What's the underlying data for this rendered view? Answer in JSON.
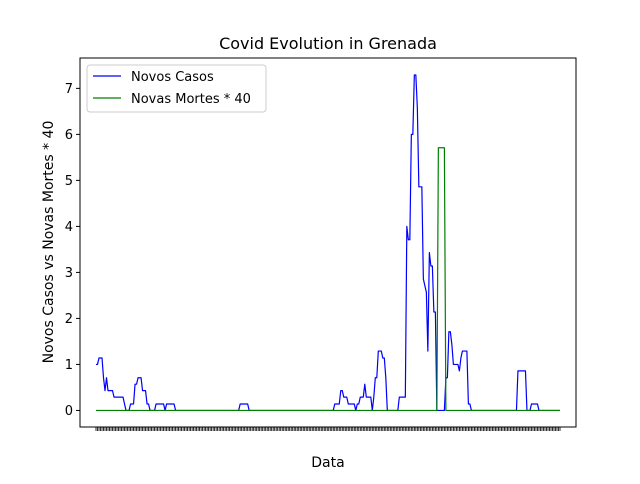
{
  "chart_data": {
    "type": "line",
    "title": "Covid Evolution in Grenada",
    "xlabel": "Data",
    "ylabel": "Novos Casos vs Novas Mortes * 40",
    "ylim": [
      -0.36,
      7.66
    ],
    "y_ticks": [
      0,
      1,
      2,
      3,
      4,
      5,
      6,
      7
    ],
    "grid": false,
    "legend_position": "upper-left",
    "x_tick_labels_note": "x tick labels are overlapping, illegible date strings",
    "x_range": [
      0,
      309
    ],
    "colors": {
      "novos_casos": "#0000ff",
      "novas_mortes": "#008000"
    },
    "series": [
      {
        "name": "Novos Casos",
        "color": "#0000ff",
        "points": [
          [
            0,
            1.0
          ],
          [
            1,
            1.0
          ],
          [
            2,
            1.14
          ],
          [
            3,
            1.14
          ],
          [
            4,
            1.14
          ],
          [
            5,
            0.71
          ],
          [
            6,
            0.43
          ],
          [
            7,
            0.71
          ],
          [
            8,
            0.43
          ],
          [
            9,
            0.43
          ],
          [
            10,
            0.43
          ],
          [
            11,
            0.43
          ],
          [
            12,
            0.29
          ],
          [
            13,
            0.29
          ],
          [
            14,
            0.29
          ],
          [
            15,
            0.29
          ],
          [
            16,
            0.29
          ],
          [
            17,
            0.29
          ],
          [
            18,
            0.29
          ],
          [
            19,
            0.14
          ],
          [
            20,
            0.0
          ],
          [
            21,
            0.0
          ],
          [
            22,
            0.0
          ],
          [
            23,
            0.14
          ],
          [
            24,
            0.14
          ],
          [
            25,
            0.14
          ],
          [
            26,
            0.57
          ],
          [
            27,
            0.57
          ],
          [
            28,
            0.71
          ],
          [
            29,
            0.71
          ],
          [
            30,
            0.71
          ],
          [
            31,
            0.43
          ],
          [
            32,
            0.43
          ],
          [
            33,
            0.43
          ],
          [
            34,
            0.14
          ],
          [
            35,
            0.14
          ],
          [
            36,
            0.0
          ],
          [
            37,
            0.0
          ],
          [
            38,
            0.0
          ],
          [
            39,
            0.0
          ],
          [
            40,
            0.14
          ],
          [
            41,
            0.14
          ],
          [
            42,
            0.14
          ],
          [
            43,
            0.14
          ],
          [
            44,
            0.14
          ],
          [
            45,
            0.14
          ],
          [
            46,
            0.0
          ],
          [
            47,
            0.14
          ],
          [
            48,
            0.14
          ],
          [
            49,
            0.14
          ],
          [
            50,
            0.14
          ],
          [
            51,
            0.14
          ],
          [
            52,
            0.14
          ],
          [
            53,
            0.0
          ],
          [
            54,
            0.0
          ],
          [
            55,
            0.0
          ],
          [
            95,
            0.0
          ],
          [
            96,
            0.14
          ],
          [
            97,
            0.14
          ],
          [
            98,
            0.14
          ],
          [
            99,
            0.14
          ],
          [
            100,
            0.14
          ],
          [
            101,
            0.14
          ],
          [
            102,
            0.0
          ],
          [
            103,
            0.0
          ],
          [
            158,
            0.0
          ],
          [
            159,
            0.14
          ],
          [
            160,
            0.14
          ],
          [
            161,
            0.14
          ],
          [
            162,
            0.14
          ],
          [
            163,
            0.43
          ],
          [
            164,
            0.43
          ],
          [
            165,
            0.29
          ],
          [
            166,
            0.29
          ],
          [
            167,
            0.29
          ],
          [
            168,
            0.14
          ],
          [
            169,
            0.14
          ],
          [
            170,
            0.14
          ],
          [
            171,
            0.14
          ],
          [
            172,
            0.14
          ],
          [
            173,
            0.0
          ],
          [
            174,
            0.14
          ],
          [
            175,
            0.14
          ],
          [
            176,
            0.29
          ],
          [
            177,
            0.29
          ],
          [
            178,
            0.29
          ],
          [
            179,
            0.57
          ],
          [
            180,
            0.29
          ],
          [
            181,
            0.29
          ],
          [
            182,
            0.29
          ],
          [
            183,
            0.29
          ],
          [
            184,
            0.0
          ],
          [
            185,
            0.29
          ],
          [
            186,
            0.71
          ],
          [
            187,
            0.71
          ],
          [
            188,
            1.29
          ],
          [
            189,
            1.29
          ],
          [
            190,
            1.29
          ],
          [
            191,
            1.14
          ],
          [
            192,
            1.14
          ],
          [
            193,
            0.71
          ],
          [
            194,
            0.0
          ],
          [
            195,
            0.0
          ],
          [
            196,
            0.0
          ],
          [
            197,
            0.0
          ],
          [
            198,
            0.0
          ],
          [
            199,
            0.0
          ],
          [
            200,
            0.0
          ],
          [
            201,
            0.0
          ],
          [
            202,
            0.29
          ],
          [
            203,
            0.29
          ],
          [
            204,
            0.29
          ],
          [
            205,
            0.29
          ],
          [
            206,
            0.29
          ],
          [
            207,
            4.0
          ],
          [
            208,
            3.71
          ],
          [
            209,
            3.71
          ],
          [
            210,
            6.0
          ],
          [
            211,
            6.0
          ],
          [
            212,
            7.29
          ],
          [
            213,
            7.29
          ],
          [
            214,
            6.57
          ],
          [
            215,
            4.86
          ],
          [
            216,
            4.86
          ],
          [
            217,
            4.86
          ],
          [
            218,
            2.86
          ],
          [
            219,
            2.71
          ],
          [
            220,
            2.57
          ],
          [
            221,
            1.29
          ],
          [
            222,
            3.43
          ],
          [
            223,
            3.14
          ],
          [
            224,
            3.14
          ],
          [
            225,
            2.14
          ],
          [
            226,
            2.14
          ],
          [
            227,
            0.0
          ],
          [
            228,
            0.0
          ],
          [
            229,
            0.0
          ],
          [
            230,
            0.0
          ],
          [
            231,
            0.0
          ],
          [
            232,
            0.0
          ],
          [
            233,
            0.71
          ],
          [
            234,
            0.71
          ],
          [
            235,
            1.71
          ],
          [
            236,
            1.71
          ],
          [
            237,
            1.43
          ],
          [
            238,
            1.0
          ],
          [
            239,
            1.0
          ],
          [
            240,
            1.0
          ],
          [
            241,
            1.0
          ],
          [
            242,
            0.86
          ],
          [
            243,
            1.14
          ],
          [
            244,
            1.29
          ],
          [
            245,
            1.29
          ],
          [
            246,
            1.29
          ],
          [
            247,
            1.29
          ],
          [
            248,
            0.14
          ],
          [
            249,
            0.14
          ],
          [
            250,
            0.0
          ],
          [
            251,
            0.0
          ],
          [
            280,
            0.0
          ],
          [
            281,
            0.86
          ],
          [
            282,
            0.86
          ],
          [
            283,
            0.86
          ],
          [
            284,
            0.86
          ],
          [
            285,
            0.86
          ],
          [
            286,
            0.86
          ],
          [
            287,
            0.0
          ],
          [
            288,
            0.0
          ],
          [
            289,
            0.0
          ],
          [
            290,
            0.14
          ],
          [
            291,
            0.14
          ],
          [
            292,
            0.14
          ],
          [
            293,
            0.14
          ],
          [
            294,
            0.14
          ],
          [
            295,
            0.0
          ],
          [
            309,
            0.0
          ]
        ]
      },
      {
        "name": "Novas Mortes * 40",
        "color": "#008000",
        "points": [
          [
            0,
            0.0
          ],
          [
            226,
            0.0
          ],
          [
            227,
            0.0
          ],
          [
            228,
            5.71
          ],
          [
            229,
            5.71
          ],
          [
            230,
            5.71
          ],
          [
            231,
            5.71
          ],
          [
            232,
            5.71
          ],
          [
            233,
            0.0
          ],
          [
            309,
            0.0
          ]
        ]
      }
    ]
  }
}
